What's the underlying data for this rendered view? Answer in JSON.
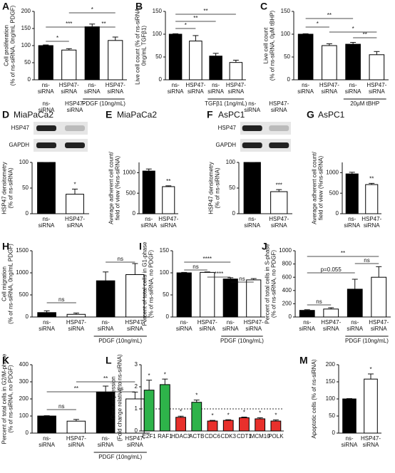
{
  "chart_data": [
    {
      "type": "bar",
      "label": "A",
      "ylabel": [
        "Cell proliferation",
        "(% of ns-siRNA, 0ng/mL PDGF)"
      ],
      "categories": [
        "ns-siRNA",
        "HSP47-siRNA",
        "ns-siRNA",
        "HSP47-siRNA"
      ],
      "values": [
        100,
        87,
        155,
        115
      ],
      "errors": [
        2,
        4,
        8,
        10
      ],
      "colors": [
        "#000000",
        "#ffffff",
        "#000000",
        "#ffffff"
      ],
      "ylim": [
        0,
        200
      ],
      "yticks": [
        0,
        50,
        100,
        150,
        200
      ],
      "annotations": [
        "*",
        "***",
        "*",
        "**"
      ],
      "group_label": "PDGF (10ng/mL)"
    },
    {
      "type": "bar",
      "label": "B",
      "ylabel": [
        "Live cell count (% of ns-siRNA,",
        "0ng/mL TGFβ1)"
      ],
      "categories": [
        "ns-siRNA",
        "HSP47-siRNA",
        "ns-siRNA",
        "HSP47-siRNA"
      ],
      "values": [
        100,
        85,
        52,
        38
      ],
      "errors": [
        1,
        12,
        6,
        5
      ],
      "colors": [
        "#000000",
        "#ffffff",
        "#000000",
        "#ffffff"
      ],
      "ylim": [
        0,
        150
      ],
      "yticks": [
        0,
        50,
        100,
        150
      ],
      "annotations": [
        "*",
        "**",
        "**"
      ],
      "group_label": "TGFβ1 (1ng/mL)"
    },
    {
      "type": "bar",
      "label": "C",
      "ylabel": [
        "Live cell count",
        "(% of ns-siRNA, 0μM tBHP)"
      ],
      "categories": [
        "ns-siRNA",
        "HSP47-siRNA",
        "ns-siRNA",
        "HSP47-siRNA"
      ],
      "values": [
        100,
        75,
        78,
        55
      ],
      "errors": [
        1,
        4,
        4,
        7
      ],
      "colors": [
        "#000000",
        "#ffffff",
        "#000000",
        "#ffffff"
      ],
      "ylim": [
        0,
        150
      ],
      "yticks": [
        0,
        50,
        100,
        150
      ],
      "annotations": [
        "**",
        "*",
        "*",
        "**"
      ],
      "group_label": "20μM tBHP"
    },
    {
      "type": "bar",
      "label": "D",
      "title": "MiaPaCa2",
      "blot_rows": [
        "HSP47",
        "GAPDH"
      ],
      "ylabel": [
        "HSP47 densitometry",
        "(% of ns-siRNA)"
      ],
      "categories": [
        "ns-siRNA",
        "HSP47-siRNA"
      ],
      "values": [
        100,
        38
      ],
      "errors": [
        0,
        10
      ],
      "colors": [
        "#000000",
        "#ffffff"
      ],
      "ylim": [
        0,
        100
      ],
      "yticks": [
        0,
        50,
        100
      ],
      "annotations": [
        "*"
      ]
    },
    {
      "type": "bar",
      "label": "E",
      "title": "MiaPaCa2",
      "ylabel": [
        "Average adherent cell count/",
        "field of view (%ns-siRNA)"
      ],
      "categories": [
        "ns-siRNA",
        "HSP47-siRNA"
      ],
      "values": [
        1040,
        660
      ],
      "errors": [
        50,
        20
      ],
      "colors": [
        "#000000",
        "#ffffff"
      ],
      "ylim": [
        0,
        1250
      ],
      "yticks": [
        0,
        500,
        1000
      ],
      "annotations": [
        "**"
      ]
    },
    {
      "type": "bar",
      "label": "F",
      "title": "AsPC1",
      "blot_rows": [
        "HSP47",
        "GAPDH"
      ],
      "ylabel": [
        "HSP47 densitometry",
        "(% of ns-siRNA)"
      ],
      "categories": [
        "ns-siRNA",
        "HSP47-siRNA"
      ],
      "values": [
        100,
        43
      ],
      "errors": [
        0,
        4
      ],
      "colors": [
        "#000000",
        "#ffffff"
      ],
      "ylim": [
        0,
        100
      ],
      "yticks": [
        0,
        50,
        100
      ],
      "annotations": [
        "***"
      ]
    },
    {
      "type": "bar",
      "label": "G",
      "title": "AsPC1",
      "ylabel": [
        "Average adherent cell count/",
        "field of view (%ns-siRNA)"
      ],
      "categories": [
        "ns-siRNA",
        "HSP47-siRNA"
      ],
      "values": [
        970,
        710
      ],
      "errors": [
        40,
        30
      ],
      "colors": [
        "#000000",
        "#ffffff"
      ],
      "ylim": [
        0,
        1250
      ],
      "yticks": [
        0,
        500,
        1000
      ],
      "annotations": [
        "**"
      ]
    },
    {
      "type": "bar",
      "label": "H",
      "ylabel": [
        "Cell migration",
        "(% of ns-siRNA, 0ng/mL PDGF)"
      ],
      "categories": [
        "ns-siRNA",
        "HSP47-siRNA",
        "ns-siRNA",
        "HSP47-siRNA"
      ],
      "values": [
        100,
        60,
        820,
        960
      ],
      "errors": [
        40,
        30,
        200,
        250
      ],
      "colors": [
        "#000000",
        "#ffffff",
        "#000000",
        "#ffffff"
      ],
      "ylim": [
        0,
        1500
      ],
      "yticks": [
        0,
        500,
        1000,
        1500
      ],
      "annotations": [
        "ns",
        "ns"
      ],
      "group_label": "PDGF (10ng/mL)"
    },
    {
      "type": "bar",
      "label": "I",
      "ylabel": [
        "Percent of total cells in G1-phase",
        "(% of ns-siRNA, no PDGF)"
      ],
      "categories": [
        "ns-siRNA",
        "HSP47-siRNA",
        "ns-siRNA",
        "HSP47-siRNA"
      ],
      "values": [
        100,
        101,
        86,
        84
      ],
      "errors": [
        1,
        1,
        3,
        3
      ],
      "colors": [
        "#000000",
        "#ffffff",
        "#000000",
        "#ffffff"
      ],
      "ylim": [
        0,
        150
      ],
      "yticks": [
        0,
        50,
        100,
        150
      ],
      "annotations": [
        "ns",
        "****",
        "****",
        "ns"
      ],
      "group_label": "PDGF (10ng/mL)"
    },
    {
      "type": "bar",
      "label": "J",
      "ylabel": [
        "Percent of total cells in S-phase",
        "(% of ns-siRNA, no PDGF)"
      ],
      "categories": [
        "ns-siRNA",
        "HSP47-siRNA",
        "ns-siRNA",
        "HSP47-siRNA"
      ],
      "values": [
        100,
        120,
        420,
        600
      ],
      "errors": [
        10,
        20,
        150,
        160
      ],
      "colors": [
        "#000000",
        "#ffffff",
        "#000000",
        "#ffffff"
      ],
      "ylim": [
        0,
        1000
      ],
      "yticks": [
        0,
        200,
        400,
        600,
        800,
        1000
      ],
      "annotations": [
        "ns",
        "p=0.055",
        "**",
        "ns"
      ],
      "group_label": "PDGF (10ng/mL)"
    },
    {
      "type": "bar",
      "label": "K",
      "ylabel": [
        "Percent of total cells in G2/M-phase",
        "(% of ns-siRNA, no PDGF)"
      ],
      "categories": [
        "ns-siRNA",
        "HSP47-siRNA",
        "ns-siRNA",
        "HSP47-siRNA"
      ],
      "values": [
        100,
        70,
        240,
        200
      ],
      "errors": [
        2,
        10,
        35,
        40
      ],
      "colors": [
        "#000000",
        "#ffffff",
        "#000000",
        "#ffffff"
      ],
      "ylim": [
        0,
        400
      ],
      "yticks": [
        0,
        100,
        200,
        300,
        400
      ],
      "annotations": [
        "ns",
        "**",
        "**",
        "ns"
      ],
      "group_label": "PDGF (10ng/mL)"
    },
    {
      "type": "bar",
      "label": "L",
      "ylabel": [
        "Gene expression",
        "(Fold change relative to ns-siRNA)"
      ],
      "categories": [
        "E2F1",
        "RAF1",
        "HDAC3",
        "ACTB",
        "CDC6",
        "CDK3",
        "CDT1",
        "MCM10",
        "POLK"
      ],
      "values": [
        1.85,
        2.1,
        0.62,
        1.3,
        0.45,
        0.48,
        0.6,
        0.55,
        0.45
      ],
      "errors": [
        0.45,
        0.25,
        0.05,
        0.1,
        0.03,
        0.03,
        0.03,
        0.05,
        0.05
      ],
      "colors": [
        "#2eb34a",
        "#2eb34a",
        "#e8302c",
        "#2eb34a",
        "#e8302c",
        "#e8302c",
        "#e8302c",
        "#e8302c",
        "#e8302c"
      ],
      "ylim": [
        0,
        3
      ],
      "yticks": [
        0,
        1,
        2,
        3
      ],
      "reference_line": 1,
      "annotations": [
        "*",
        "*",
        "*",
        "*",
        "*",
        "*",
        "*",
        "*",
        "*"
      ]
    },
    {
      "type": "bar",
      "label": "M",
      "ylabel": [
        "Apoptotic cells (% of ns-siRNA)"
      ],
      "categories": [
        "ns-siRNA",
        "HSP47-siRNA"
      ],
      "values": [
        100,
        158
      ],
      "errors": [
        1,
        15
      ],
      "colors": [
        "#000000",
        "#ffffff"
      ],
      "ylim": [
        0,
        200
      ],
      "yticks": [
        0,
        50,
        100,
        150,
        200
      ],
      "annotations": [
        "*"
      ]
    }
  ]
}
